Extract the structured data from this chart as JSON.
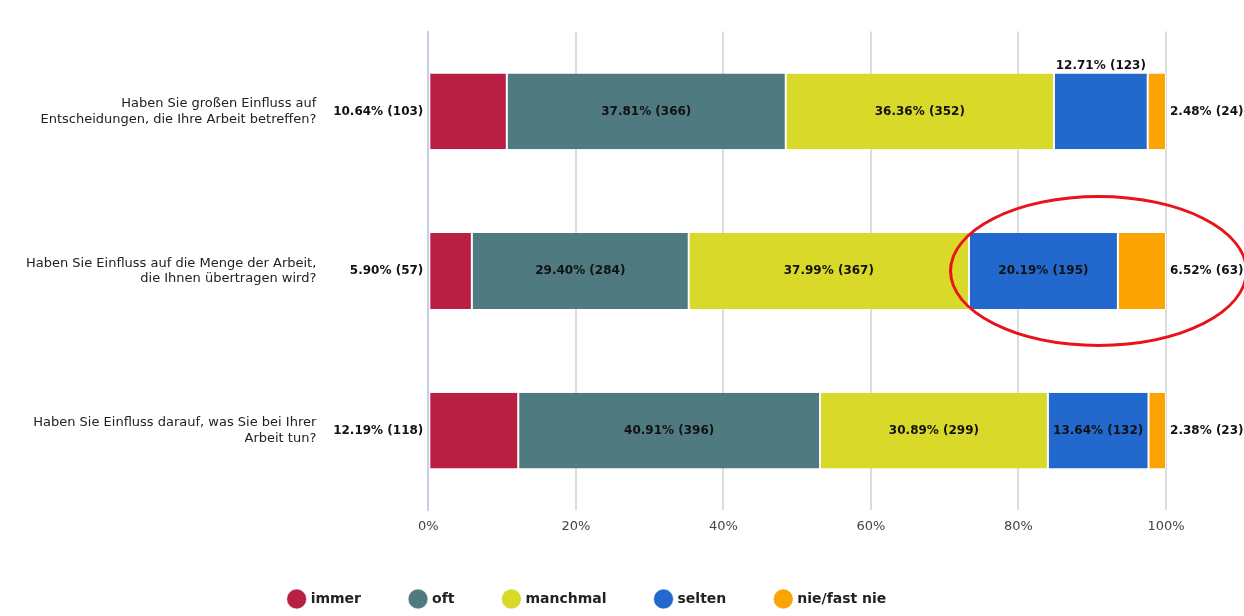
{
  "chart_data": {
    "type": "bar",
    "orientation": "horizontal",
    "stacked": true,
    "categories": [
      "Haben Sie großen Einfluss auf Entscheidungen, die Ihre Arbeit betreffen?",
      "Haben Sie Einfluss auf die Menge der Arbeit, die Ihnen übertragen wird?",
      "Haben Sie Einfluss darauf, was Sie bei Ihrer Arbeit tun?"
    ],
    "series": [
      {
        "name": "immer",
        "color": "#b81f42",
        "values": [
          10.64,
          5.9,
          12.19
        ],
        "value_labels": [
          "10.64% (103)",
          "5.90% (57)",
          "12.19% (118)"
        ]
      },
      {
        "name": "oft",
        "color": "#4f7a80",
        "values": [
          37.81,
          29.4,
          40.91
        ],
        "value_labels": [
          "37.81% (366)",
          "29.40% (284)",
          "40.91% (396)"
        ]
      },
      {
        "name": "manchmal",
        "color": "#d8d928",
        "values": [
          36.36,
          37.99,
          30.89
        ],
        "value_labels": [
          "36.36% (352)",
          "37.99% (367)",
          "30.89% (299)"
        ]
      },
      {
        "name": "selten",
        "color": "#2368cc",
        "values": [
          12.71,
          20.19,
          13.64
        ],
        "value_labels": [
          "12.71% (123)",
          "20.19% (195)",
          "13.64% (132)"
        ]
      },
      {
        "name": "nie/fast nie",
        "color": "#fba404",
        "values": [
          2.48,
          6.52,
          2.38
        ],
        "value_labels": [
          "2.48% (24)",
          "6.52% (63)",
          "2.38% (23)"
        ]
      }
    ],
    "xlim": [
      0,
      100
    ],
    "xticks": [
      {
        "value": 0,
        "label": "0%"
      },
      {
        "value": 20,
        "label": "20%"
      },
      {
        "value": 40,
        "label": "40%"
      },
      {
        "value": 60,
        "label": "60%"
      },
      {
        "value": 80,
        "label": "80%"
      },
      {
        "value": 100,
        "label": "100%"
      }
    ],
    "grid": "x",
    "legend": "bottom"
  }
}
